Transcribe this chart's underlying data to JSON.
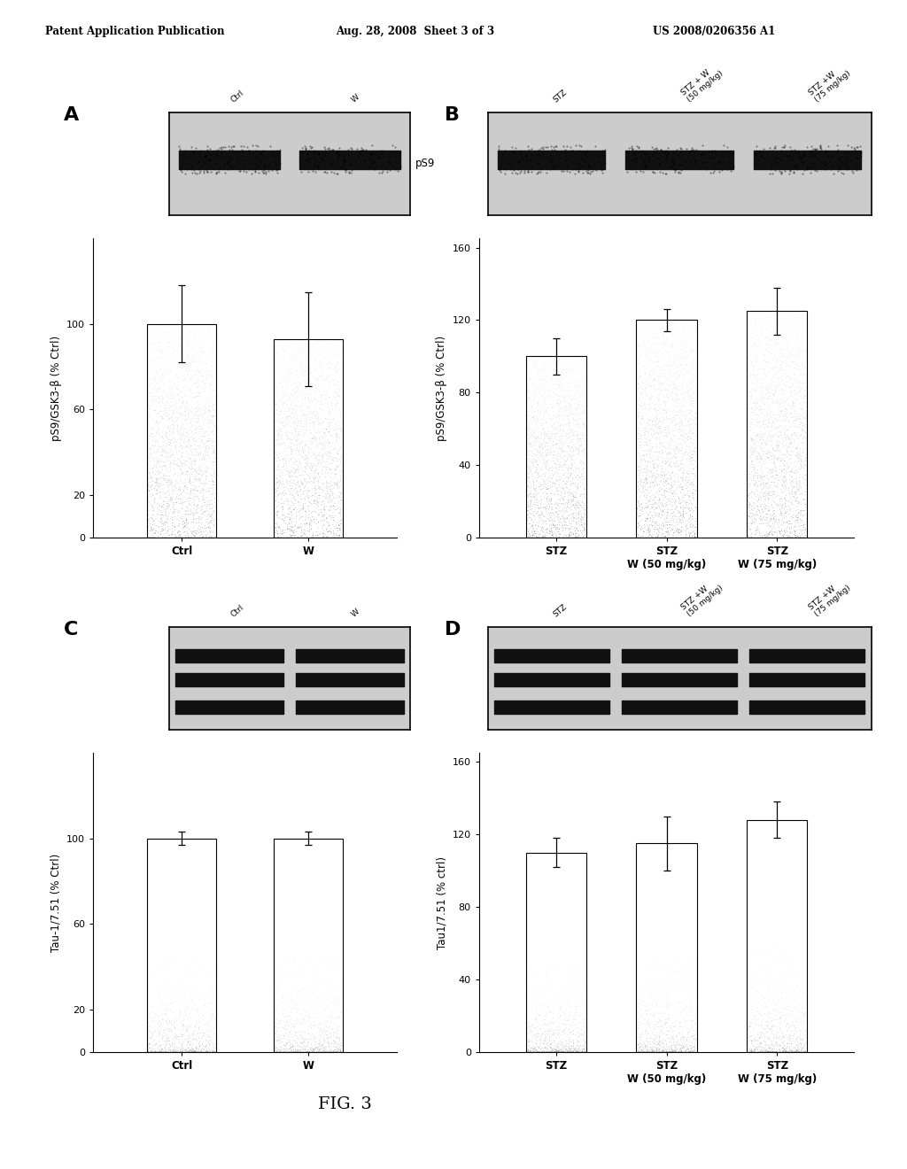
{
  "header_left": "Patent Application Publication",
  "header_mid": "Aug. 28, 2008  Sheet 3 of 3",
  "header_right": "US 2008/0206356 A1",
  "fig_label": "FIG. 3",
  "panel_A": {
    "label": "A",
    "blot_label": "pS9",
    "blot_sublabels": [
      "Ctrl",
      "W"
    ],
    "blot_n_bands": 1,
    "bar_categories_line1": [
      "Ctrl",
      "W"
    ],
    "bar_categories_line2": [
      "",
      ""
    ],
    "bar_values": [
      100,
      93
    ],
    "bar_errors": [
      18,
      22
    ],
    "ylabel": "pS9/GSK3-β (% Ctrl)",
    "yticks": [
      0,
      20,
      60,
      100
    ],
    "ylim": [
      0,
      140
    ],
    "bar_style": "dark_stipple"
  },
  "panel_B": {
    "label": "B",
    "blot_label": "",
    "blot_sublabels": [
      "STZ",
      "STZ + W\n(50 mg/kg)",
      "STZ +W\n(75 mg/kg)"
    ],
    "blot_n_bands": 1,
    "bar_categories_line1": [
      "STZ",
      "STZ",
      "STZ"
    ],
    "bar_categories_line2": [
      "",
      "W (50 mg/kg)",
      "W (75 mg/kg)"
    ],
    "bar_values": [
      100,
      120,
      125
    ],
    "bar_errors": [
      10,
      6,
      13
    ],
    "ylabel": "pS9/GSK3-β (% Ctrl)",
    "yticks": [
      0,
      40,
      80,
      120,
      160
    ],
    "ylim": [
      0,
      165
    ],
    "bar_style": "dark_stipple"
  },
  "panel_C": {
    "label": "C",
    "blot_label": "",
    "blot_sublabels": [
      "Ctrl",
      "W"
    ],
    "blot_n_bands": 3,
    "bar_categories_line1": [
      "Ctrl",
      "W"
    ],
    "bar_categories_line2": [
      "",
      ""
    ],
    "bar_values": [
      100,
      100
    ],
    "bar_errors": [
      3,
      3
    ],
    "ylabel": "Tau-1/7.51 (% Ctrl)",
    "yticks": [
      0,
      20,
      60,
      100
    ],
    "ylim": [
      0,
      140
    ],
    "bar_style": "light_stipple"
  },
  "panel_D": {
    "label": "D",
    "blot_label": "",
    "blot_sublabels": [
      "STZ",
      "STZ +W\n(50 mg/kg)",
      "STZ +W\n(75 mg/kg)"
    ],
    "blot_n_bands": 3,
    "bar_categories_line1": [
      "STZ",
      "STZ",
      "STZ"
    ],
    "bar_categories_line2": [
      "",
      "W (50 mg/kg)",
      "W (75 mg/kg)"
    ],
    "bar_values": [
      110,
      115,
      128
    ],
    "bar_errors": [
      8,
      15,
      10
    ],
    "ylabel": "Tau1/7.51 (% ctrl)",
    "yticks": [
      0,
      40,
      80,
      120,
      160
    ],
    "ylim": [
      0,
      165
    ],
    "bar_style": "light_stipple"
  }
}
